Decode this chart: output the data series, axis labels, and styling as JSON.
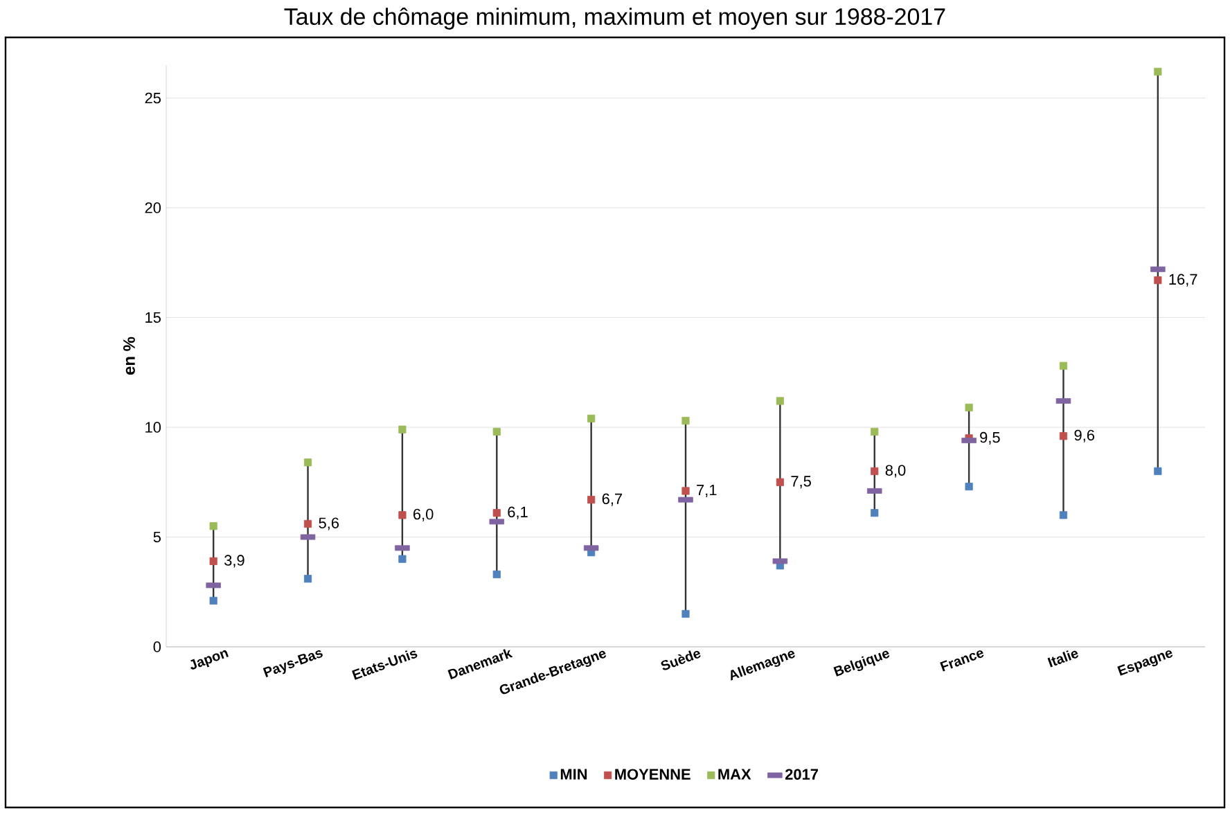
{
  "chart_data": {
    "type": "scatter",
    "title": "Taux de chômage minimum, maximum et moyen sur 1988-2017",
    "ylabel": "en %",
    "categories": [
      "Japon",
      "Pays-Bas",
      "Etats-Unis",
      "Danemark",
      "Grande-Bretagne",
      "Suède",
      "Allemagne",
      "Belgique",
      "France",
      "Italie",
      "Espagne"
    ],
    "series": [
      {
        "name": "MIN",
        "color": "#4f81bd",
        "marker": "square",
        "values": [
          2.1,
          3.1,
          4.0,
          3.3,
          4.3,
          1.5,
          3.7,
          6.1,
          7.3,
          6.0,
          8.0
        ]
      },
      {
        "name": "MOYENNE",
        "color": "#c0504d",
        "marker": "square",
        "values": [
          3.9,
          5.6,
          6.0,
          6.1,
          6.7,
          7.1,
          7.5,
          8.0,
          9.5,
          9.6,
          16.7
        ],
        "value_labels": [
          "3,9",
          "5,6",
          "6,0",
          "6,1",
          "6,7",
          "7,1",
          "7,5",
          "8,0",
          "9,5",
          "9,6",
          "16,7"
        ]
      },
      {
        "name": "MAX",
        "color": "#9bbb59",
        "marker": "square",
        "values": [
          5.5,
          8.4,
          9.9,
          9.8,
          10.4,
          10.3,
          11.2,
          9.8,
          10.9,
          12.8,
          26.2
        ]
      },
      {
        "name": "2017",
        "color": "#8064a2",
        "values": [
          2.8,
          5.0,
          4.5,
          5.7,
          4.5,
          6.7,
          3.9,
          7.1,
          9.4,
          11.2,
          17.2
        ]
      }
    ],
    "ylim": [
      0,
      26.5
    ],
    "yticks": [
      0,
      5,
      10,
      15,
      20,
      25
    ],
    "grid": "y",
    "legend": "bottom"
  }
}
